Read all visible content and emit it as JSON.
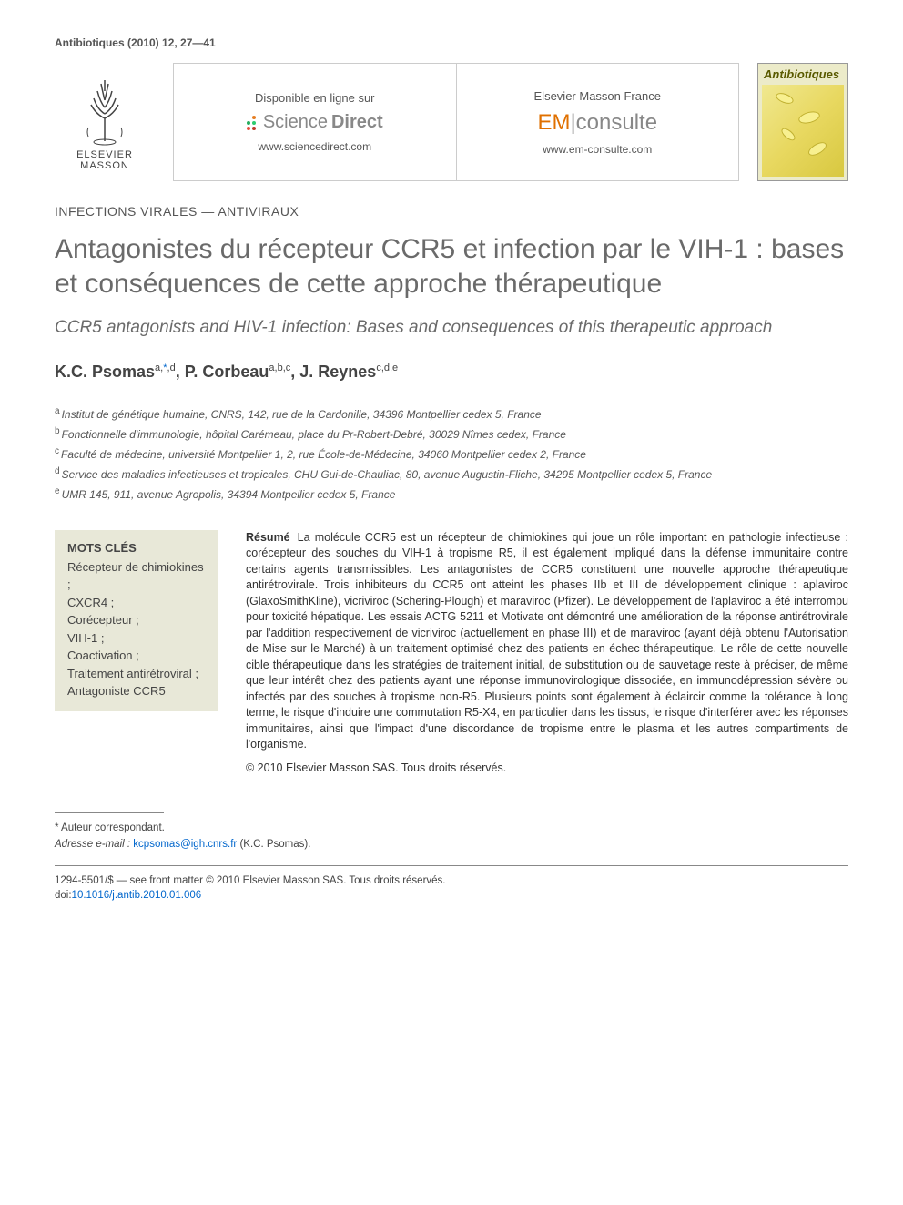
{
  "journal_ref": "Antibiotiques (2010) 12, 27—41",
  "publisher": {
    "name": "ELSEVIER",
    "sub": "MASSON"
  },
  "site_left": {
    "label": "Disponible en ligne sur",
    "logo_light": "Science",
    "logo_bold": "Direct",
    "url": "www.sciencedirect.com",
    "dot_colors": [
      "#f39c12",
      "#e67e22",
      "#27ae60",
      "#2ecc71",
      "#e74c3c",
      "#c0392b"
    ]
  },
  "site_right": {
    "label": "Elsevier Masson France",
    "prefix": "EM",
    "suffix": "consulte",
    "url": "www.em-consulte.com"
  },
  "cover": {
    "title": "Antibiotiques"
  },
  "section_label": "INFECTIONS VIRALES — ANTIVIRAUX",
  "title": "Antagonistes du récepteur CCR5 et infection par le VIH-1 : bases et conséquences de cette approche thérapeutique",
  "subtitle": "CCR5 antagonists and HIV-1 infection: Bases and consequences of this therapeutic approach",
  "authors": [
    {
      "name": "K.C. Psomas",
      "sup": "a,*,d",
      "corresponding": true
    },
    {
      "name": "P. Corbeau",
      "sup": "a,b,c"
    },
    {
      "name": "J. Reynes",
      "sup": "c,d,e"
    }
  ],
  "affiliations": [
    {
      "key": "a",
      "text": "Institut de génétique humaine, CNRS, 142, rue de la Cardonille, 34396 Montpellier cedex 5, France"
    },
    {
      "key": "b",
      "text": "Fonctionnelle d'immunologie, hôpital Carémeau, place du Pr-Robert-Debré, 30029 Nîmes cedex, France"
    },
    {
      "key": "c",
      "text": "Faculté de médecine, université Montpellier 1, 2, rue École-de-Médecine, 34060 Montpellier cedex 2, France"
    },
    {
      "key": "d",
      "text": "Service des maladies infectieuses et tropicales, CHU Gui-de-Chauliac, 80, avenue Augustin-Fliche, 34295 Montpellier cedex 5, France"
    },
    {
      "key": "e",
      "text": "UMR 145, 911, avenue Agropolis, 34394 Montpellier cedex 5, France"
    }
  ],
  "keywords": {
    "heading": "MOTS CLÉS",
    "list": "Récepteur de chimiokines ; CXCR4 ; Corécepteur ; VIH-1 ; Coactivation ; Traitement antirétroviral ; Antagoniste CCR5"
  },
  "abstract": {
    "label": "Résumé",
    "text": "La molécule CCR5 est un récepteur de chimiokines qui joue un rôle important en pathologie infectieuse : corécepteur des souches du VIH-1 à tropisme R5, il est également impliqué dans la défense immunitaire contre certains agents transmissibles. Les antagonistes de CCR5 constituent une nouvelle approche thérapeutique antirétrovirale. Trois inhibiteurs du CCR5 ont atteint les phases IIb et III de développement clinique : aplaviroc (GlaxoSmithKline), vicriviroc (Schering-Plough) et maraviroc (Pfizer). Le développement de l'aplaviroc a été interrompu pour toxicité hépatique. Les essais ACTG 5211 et Motivate ont démontré une amélioration de la réponse antirétrovirale par l'addition respectivement de vicriviroc (actuellement en phase III) et de maraviroc (ayant déjà obtenu l'Autorisation de Mise sur le Marché) à un traitement optimisé chez des patients en échec thérapeutique. Le rôle de cette nouvelle cible thérapeutique dans les stratégies de traitement initial, de substitution ou de sauvetage reste à préciser, de même que leur intérêt chez des patients ayant une réponse immunovirologique dissociée, en immunodépression sévère ou infectés par des souches à tropisme non-R5. Plusieurs points sont également à éclaircir comme la tolérance à long terme, le risque d'induire une commutation R5-X4, en particulier dans les tissus, le risque d'interférer avec les réponses immunitaires, ainsi que l'impact d'une discordance de tropisme entre le plasma et les autres compartiments de l'organisme.",
    "copyright": "© 2010 Elsevier Masson SAS. Tous droits réservés."
  },
  "footnotes": {
    "corresponding": "* Auteur correspondant.",
    "email_label": "Adresse e-mail :",
    "email": "kcpsomas@igh.cnrs.fr",
    "email_author": "(K.C. Psomas)."
  },
  "footer": {
    "line1": "1294-5501/$ — see front matter © 2010 Elsevier Masson SAS. Tous droits réservés.",
    "doi_label": "doi:",
    "doi": "10.1016/j.antib.2010.01.006"
  }
}
